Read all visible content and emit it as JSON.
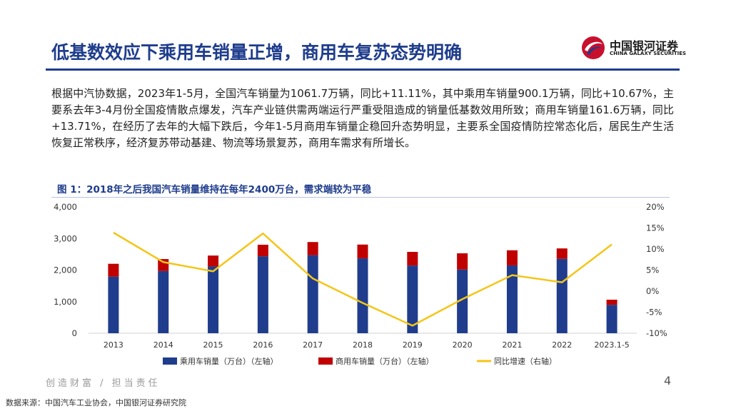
{
  "header": {
    "title": "低基数效应下乘用车销量正增，商用车复苏态势明确",
    "logo_cn": "中国银河证券",
    "logo_en": "CHINA GALAXY SECURITIES"
  },
  "body_text": "根据中汽协数据，2023年1-5月，全国汽车销量为1061.7万辆，同比+11.11%，其中乘用车销量900.1万辆，同比+10.67%，主要系去年3-4月份全国疫情散点爆发，汽车产业链供需两端运行严重受阻造成的销量低基数效用所致；商用车销量161.6万辆，同比+13.71%，在经历了去年的大幅下跌后，今年1-5月商用车销量企稳回升态势明显，主要系全国疫情防控常态化后，居民生产生活恢复正常秩序，经济复苏带动基建、物流等场景复苏，商用车需求有所增长。",
  "figure": {
    "title": "图 1：2018年之后我国汽车销量维持在每年2400万台，需求端较为平稳"
  },
  "chart_data": {
    "type": "bar",
    "title": "",
    "categories": [
      "2013",
      "2014",
      "2015",
      "2016",
      "2017",
      "2018",
      "2019",
      "2020",
      "2021",
      "2022",
      "2023.1-5"
    ],
    "series": [
      {
        "name": "乘用车销量（万台）（左轴）",
        "kind": "bar",
        "stack": "sales",
        "axis": "left",
        "color": "#1f3d8c",
        "values": [
          1793,
          1970,
          2115,
          2438,
          2472,
          2371,
          2144,
          2018,
          2148,
          2356,
          900
        ]
      },
      {
        "name": "商用车销量（万台）（左轴）",
        "kind": "bar",
        "stack": "sales",
        "axis": "left",
        "color": "#c00000",
        "values": [
          406,
          379,
          345,
          365,
          416,
          437,
          432,
          513,
          479,
          330,
          162
        ]
      },
      {
        "name": "同比增速（右轴）",
        "kind": "line",
        "axis": "right",
        "color": "#f5c518",
        "values": [
          13.9,
          6.9,
          4.7,
          13.7,
          3.0,
          -2.8,
          -8.2,
          -1.9,
          3.8,
          2.1,
          11.1
        ]
      }
    ],
    "y_left": {
      "min": 0,
      "max": 4000,
      "ticks": [
        "0",
        "1,000",
        "2,000",
        "3,000",
        "4,000"
      ]
    },
    "y_right": {
      "min": -10,
      "max": 20,
      "ticks": [
        "-10%",
        "-5%",
        "0%",
        "5%",
        "10%",
        "15%",
        "20%"
      ]
    },
    "grid": false,
    "legend_position": "bottom"
  },
  "footer": {
    "slogan": "创造财富 / 担当责任",
    "page": "4",
    "source": "数据来源：中国汽车工业协会，中国银河证券研究院"
  }
}
